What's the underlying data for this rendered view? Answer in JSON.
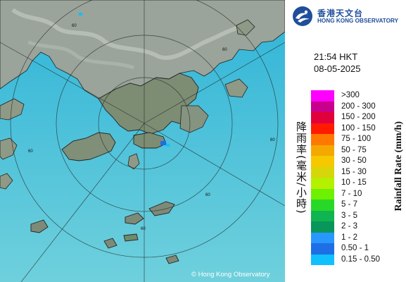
{
  "header": {
    "logo_zh": "香港天文台",
    "logo_en": "HONG KONG OBSERVATORY"
  },
  "timestamp": {
    "time": "21:54 HKT",
    "date": "08-05-2025"
  },
  "map": {
    "range_ring_labels": [
      "60",
      "60",
      "60",
      "60",
      "60",
      "60"
    ],
    "copyright": "© Hong Kong Observatory",
    "colors": {
      "sea": "#4ec0d8",
      "land": "#8a9a80"
    }
  },
  "legend": {
    "title_zh": "降雨率(毫米/小時)",
    "title_en": "Rainfall Rate (mm/h)",
    "items": [
      {
        "label": ">300",
        "color": "#ff00ff"
      },
      {
        "label": "200 - 300",
        "color": "#c8008c"
      },
      {
        "label": "150 - 200",
        "color": "#e2003c"
      },
      {
        "label": "100 - 150",
        "color": "#ff1a00"
      },
      {
        "label": "75 - 100",
        "color": "#ff7800"
      },
      {
        "label": "50 - 75",
        "color": "#f5a800"
      },
      {
        "label": "30 - 50",
        "color": "#f5c800"
      },
      {
        "label": "15 - 30",
        "color": "#d6d60a"
      },
      {
        "label": "10 - 15",
        "color": "#b4f000"
      },
      {
        "label": "7 - 10",
        "color": "#6ef000"
      },
      {
        "label": "5 - 7",
        "color": "#28d828"
      },
      {
        "label": "3 - 5",
        "color": "#10b450"
      },
      {
        "label": "2 - 3",
        "color": "#08965a"
      },
      {
        "label": "1 - 2",
        "color": "#2898ff"
      },
      {
        "label": "0.50 - 1",
        "color": "#1e6ee6"
      },
      {
        "label": "0.15 - 0.50",
        "color": "#10c0ff"
      }
    ]
  }
}
